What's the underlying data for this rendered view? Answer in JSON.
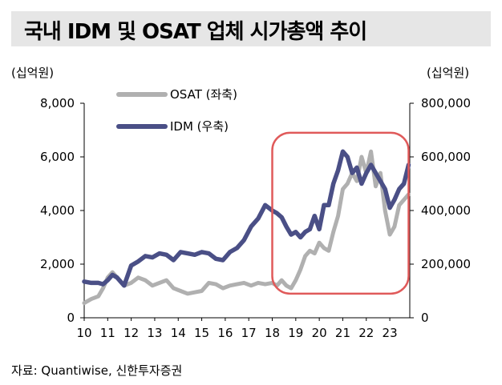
{
  "title": "국내 IDM 및 OSAT 업체 시가총액 추이",
  "source": "자료: Quantiwise, 신한투자증권",
  "chart_data": {
    "type": "line",
    "left_unit": "(십억원)",
    "right_unit": "(십억원)",
    "left_ylim": [
      0,
      8000
    ],
    "right_ylim": [
      0,
      800000
    ],
    "left_ticks": [
      "8,000",
      "6,000",
      "4,000",
      "2,000",
      "0"
    ],
    "right_ticks": [
      "800,000",
      "600,000",
      "400,000",
      "200,000",
      "0"
    ],
    "x_ticks": [
      "10",
      "11",
      "12",
      "13",
      "14",
      "15",
      "16",
      "17",
      "18",
      "19",
      "20",
      "21",
      "22",
      "23"
    ],
    "xlim": [
      2010.0,
      2023.85
    ],
    "legend_position": "top-left",
    "highlight": {
      "x_range": [
        2018.0,
        2023.8
      ],
      "y_range_left": [
        900,
        6900
      ],
      "color": "#e05a5a"
    },
    "series": [
      {
        "name": "OSAT (좌축)",
        "axis": "left",
        "color": "#b0b0b0",
        "x": [
          2010.0,
          2010.3,
          2010.6,
          2010.8,
          2011.0,
          2011.2,
          2011.4,
          2011.7,
          2012.0,
          2012.3,
          2012.6,
          2012.9,
          2013.2,
          2013.5,
          2013.8,
          2014.1,
          2014.4,
          2014.7,
          2015.0,
          2015.3,
          2015.6,
          2015.9,
          2016.2,
          2016.5,
          2016.8,
          2017.1,
          2017.4,
          2017.7,
          2018.0,
          2018.2,
          2018.4,
          2018.6,
          2018.8,
          2019.0,
          2019.2,
          2019.4,
          2019.6,
          2019.8,
          2020.0,
          2020.2,
          2020.4,
          2020.6,
          2020.8,
          2021.0,
          2021.2,
          2021.4,
          2021.6,
          2021.8,
          2022.0,
          2022.2,
          2022.4,
          2022.6,
          2022.8,
          2023.0,
          2023.2,
          2023.4,
          2023.6,
          2023.8
        ],
        "values": [
          550,
          700,
          800,
          1100,
          1500,
          1700,
          1500,
          1200,
          1300,
          1500,
          1400,
          1200,
          1300,
          1400,
          1100,
          1000,
          900,
          950,
          1000,
          1300,
          1250,
          1100,
          1200,
          1250,
          1300,
          1200,
          1300,
          1250,
          1300,
          1200,
          1400,
          1200,
          1100,
          1400,
          1800,
          2300,
          2500,
          2400,
          2800,
          2600,
          2500,
          3200,
          3800,
          4800,
          5000,
          5400,
          5100,
          6000,
          5400,
          6200,
          4900,
          5400,
          4000,
          3100,
          3400,
          4200,
          4400,
          4600
        ]
      },
      {
        "name": "IDM (우축)",
        "axis": "right",
        "color": "#4a4f86",
        "x": [
          2010.0,
          2010.3,
          2010.6,
          2010.8,
          2011.0,
          2011.2,
          2011.4,
          2011.7,
          2012.0,
          2012.3,
          2012.6,
          2012.9,
          2013.2,
          2013.5,
          2013.8,
          2014.1,
          2014.4,
          2014.7,
          2015.0,
          2015.3,
          2015.6,
          2015.9,
          2016.2,
          2016.5,
          2016.8,
          2017.1,
          2017.4,
          2017.7,
          2018.0,
          2018.2,
          2018.4,
          2018.6,
          2018.8,
          2019.0,
          2019.2,
          2019.4,
          2019.6,
          2019.8,
          2020.0,
          2020.2,
          2020.4,
          2020.6,
          2020.8,
          2021.0,
          2021.2,
          2021.4,
          2021.6,
          2021.8,
          2022.0,
          2022.2,
          2022.4,
          2022.6,
          2022.8,
          2023.0,
          2023.2,
          2023.4,
          2023.6,
          2023.8
        ],
        "values": [
          135000,
          130000,
          130000,
          125000,
          140000,
          160000,
          150000,
          120000,
          195000,
          210000,
          230000,
          225000,
          240000,
          235000,
          215000,
          245000,
          240000,
          235000,
          245000,
          240000,
          220000,
          215000,
          245000,
          260000,
          290000,
          340000,
          370000,
          420000,
          400000,
          390000,
          375000,
          340000,
          310000,
          320000,
          300000,
          320000,
          330000,
          380000,
          330000,
          420000,
          420000,
          500000,
          550000,
          620000,
          600000,
          540000,
          560000,
          500000,
          540000,
          570000,
          540000,
          510000,
          480000,
          410000,
          440000,
          480000,
          500000,
          570000
        ]
      }
    ]
  }
}
